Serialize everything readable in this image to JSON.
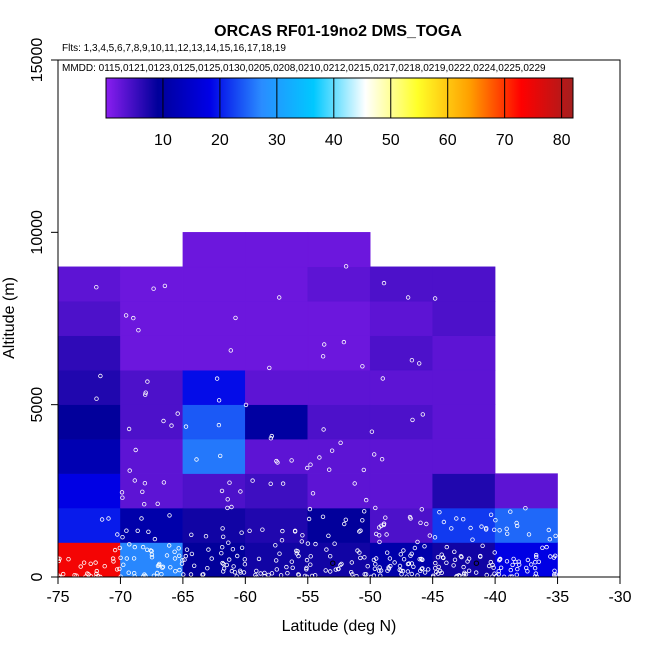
{
  "chart_data": {
    "type": "heatmap",
    "title": "ORCAS RF01-19no2 DMS_TOGA",
    "flights_line": "Flts: 1,3,4,5,6,7,8,9,10,11,12,13,14,15,16,17,18,19",
    "dates_line": "MMDD: 0115,0121,0123,0125,0125,0130,0205,0208,0210,0212,0215,0217,0218,0219,0222,0224,0225,0229",
    "xlabel": "Latitude (deg N)",
    "ylabel": "Altitude (m)",
    "xlim": [
      -75,
      -30
    ],
    "ylim": [
      0,
      15000
    ],
    "xticks": [
      -75,
      -70,
      -65,
      -60,
      -55,
      -50,
      -45,
      -40,
      -35,
      -30
    ],
    "xtick_labels": [
      "-75",
      "-70",
      "-65",
      "-60",
      "-55",
      "-50",
      "-45",
      "-40",
      "-35",
      "-30"
    ],
    "yticks": [
      0,
      5000,
      10000,
      15000
    ],
    "ytick_labels": [
      "0",
      "5000",
      "10000",
      "15000"
    ],
    "colorbar": {
      "min": 0,
      "max": 82,
      "ticks": [
        10,
        20,
        30,
        40,
        50,
        60,
        70,
        80
      ],
      "tick_labels": [
        "10",
        "20",
        "30",
        "40",
        "50",
        "60",
        "70",
        "80"
      ],
      "stops": [
        "#8a1ef0",
        "#00009a",
        "#0000e6",
        "#2a8cff",
        "#00c8ff",
        "#ffffff",
        "#ffff28",
        "#ffa000",
        "#ff0000",
        "#a51e1e"
      ]
    },
    "lat_bins": [
      -75,
      -70,
      -65,
      -60,
      -55,
      -50,
      -45,
      -40,
      -35
    ],
    "alt_bin_size": 1000,
    "cells": [
      [
        -75,
        0,
        74
      ],
      [
        -75,
        1000,
        20
      ],
      [
        -75,
        2000,
        18
      ],
      [
        -75,
        3000,
        12
      ],
      [
        -75,
        4000,
        9
      ],
      [
        -75,
        5000,
        7
      ],
      [
        -75,
        6000,
        6
      ],
      [
        -75,
        7000,
        4
      ],
      [
        -75,
        8000,
        3
      ],
      [
        -70,
        0,
        27
      ],
      [
        -70,
        1000,
        11
      ],
      [
        -70,
        2000,
        3
      ],
      [
        -70,
        3000,
        3
      ],
      [
        -70,
        4000,
        4
      ],
      [
        -70,
        5000,
        4
      ],
      [
        -70,
        6000,
        2
      ],
      [
        -70,
        7000,
        2
      ],
      [
        -70,
        8000,
        2
      ],
      [
        -65,
        0,
        9
      ],
      [
        -65,
        1000,
        8
      ],
      [
        -65,
        2000,
        4
      ],
      [
        -65,
        3000,
        26
      ],
      [
        -65,
        4000,
        24
      ],
      [
        -65,
        5000,
        19
      ],
      [
        -65,
        6000,
        2
      ],
      [
        -65,
        7000,
        2
      ],
      [
        -65,
        8000,
        2
      ],
      [
        -65,
        9000,
        2
      ],
      [
        -60,
        0,
        8
      ],
      [
        -60,
        1000,
        7
      ],
      [
        -60,
        2000,
        5
      ],
      [
        -60,
        3000,
        3
      ],
      [
        -60,
        4000,
        10
      ],
      [
        -60,
        5000,
        3
      ],
      [
        -60,
        6000,
        2
      ],
      [
        -60,
        7000,
        2
      ],
      [
        -60,
        8000,
        2
      ],
      [
        -60,
        9000,
        2
      ],
      [
        -55,
        0,
        8
      ],
      [
        -55,
        1000,
        9
      ],
      [
        -55,
        2000,
        3
      ],
      [
        -55,
        3000,
        3
      ],
      [
        -55,
        4000,
        4
      ],
      [
        -55,
        5000,
        3
      ],
      [
        -55,
        6000,
        2
      ],
      [
        -55,
        7000,
        2
      ],
      [
        -55,
        8000,
        3
      ],
      [
        -55,
        9000,
        2
      ],
      [
        -50,
        0,
        11
      ],
      [
        -50,
        1000,
        4
      ],
      [
        -50,
        2000,
        3
      ],
      [
        -50,
        3000,
        3
      ],
      [
        -50,
        4000,
        4
      ],
      [
        -50,
        5000,
        3
      ],
      [
        -50,
        6000,
        4
      ],
      [
        -50,
        7000,
        3
      ],
      [
        -50,
        8000,
        4
      ],
      [
        -45,
        0,
        8
      ],
      [
        -45,
        1000,
        22
      ],
      [
        -45,
        2000,
        7
      ],
      [
        -45,
        3000,
        3
      ],
      [
        -45,
        4000,
        3
      ],
      [
        -45,
        5000,
        3
      ],
      [
        -45,
        6000,
        3
      ],
      [
        -45,
        7000,
        4
      ],
      [
        -45,
        8000,
        4
      ],
      [
        -40,
        0,
        18
      ],
      [
        -40,
        1000,
        25
      ],
      [
        -40,
        2000,
        3
      ]
    ]
  }
}
